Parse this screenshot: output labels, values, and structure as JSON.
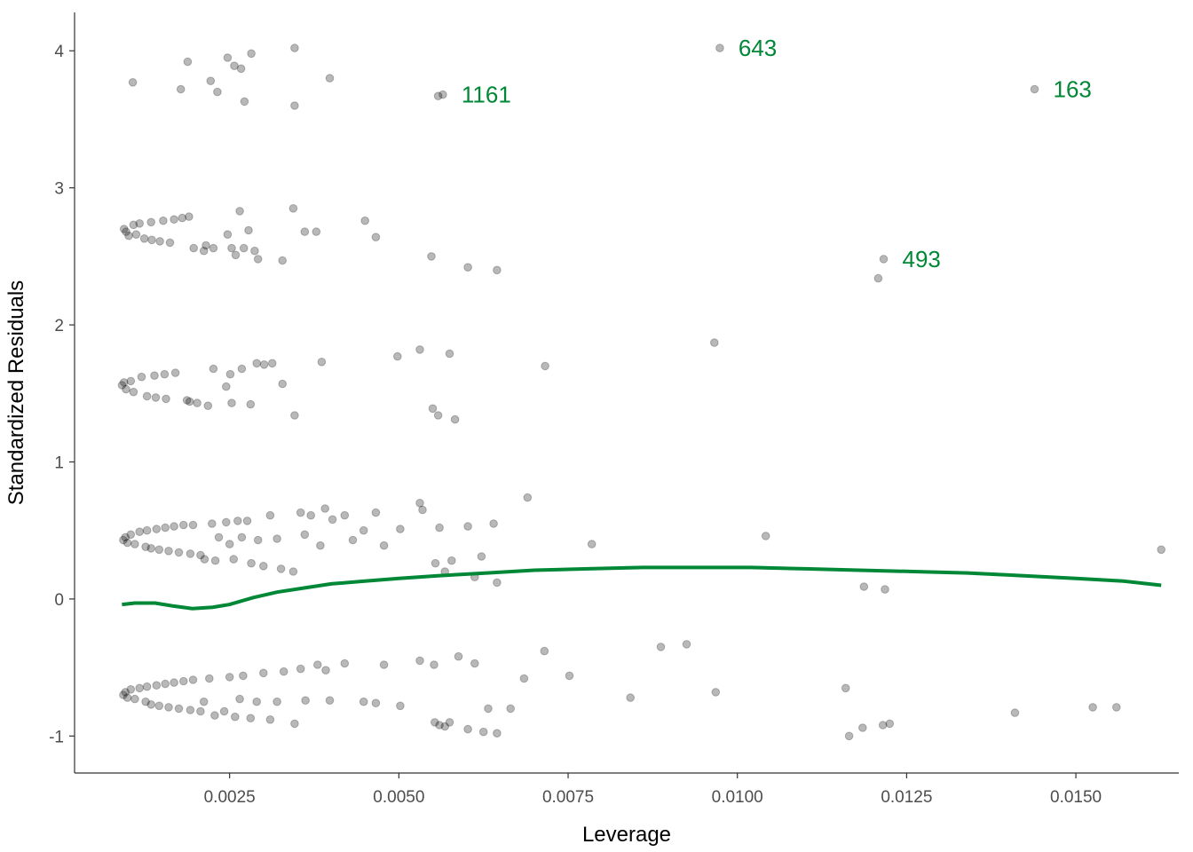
{
  "chart_data": {
    "type": "scatter",
    "title": "",
    "xlabel": "Leverage",
    "ylabel": "Standardized Residuals",
    "xlim": [
      0.00021,
      0.01652
    ],
    "ylim": [
      -1.27,
      4.28
    ],
    "x_ticks": [
      0.0025,
      0.005,
      0.0075,
      0.01,
      0.0125,
      0.015
    ],
    "x_tick_labels": [
      "0.0025",
      "0.0050",
      "0.0075",
      "0.0100",
      "0.0125",
      "0.0150"
    ],
    "y_ticks": [
      -1,
      0,
      1,
      2,
      3,
      4
    ],
    "y_tick_labels": [
      "-1",
      "0",
      "1",
      "2",
      "3",
      "4"
    ],
    "grid": false,
    "legend": "none",
    "point_color": "#000000",
    "point_opacity": 0.28,
    "smooth_color": "#008837",
    "annotation_color": "#008837",
    "series": [
      {
        "kind": "points",
        "points": [
          [
            0.00107,
            3.77
          ],
          [
            0.00178,
            3.72
          ],
          [
            0.00188,
            3.92
          ],
          [
            0.00222,
            3.78
          ],
          [
            0.00232,
            3.7
          ],
          [
            0.00247,
            3.95
          ],
          [
            0.00257,
            3.89
          ],
          [
            0.00267,
            3.87
          ],
          [
            0.00272,
            3.63
          ],
          [
            0.00282,
            3.98
          ],
          [
            0.00346,
            4.02
          ],
          [
            0.00346,
            3.6
          ],
          [
            0.00398,
            3.8
          ],
          [
            0.00558,
            3.67
          ],
          [
            0.00565,
            3.68
          ],
          [
            0.00974,
            4.02
          ],
          [
            0.01439,
            3.72
          ],
          [
            0.00094,
            2.7
          ],
          [
            0.00097,
            2.68
          ],
          [
            0.00101,
            2.65
          ],
          [
            0.00108,
            2.73
          ],
          [
            0.00112,
            2.66
          ],
          [
            0.00117,
            2.74
          ],
          [
            0.00124,
            2.63
          ],
          [
            0.00134,
            2.75
          ],
          [
            0.00135,
            2.62
          ],
          [
            0.00147,
            2.61
          ],
          [
            0.00152,
            2.76
          ],
          [
            0.00162,
            2.6
          ],
          [
            0.00168,
            2.77
          ],
          [
            0.0018,
            2.78
          ],
          [
            0.0019,
            2.79
          ],
          [
            0.00197,
            2.56
          ],
          [
            0.00212,
            2.54
          ],
          [
            0.00215,
            2.58
          ],
          [
            0.00226,
            2.56
          ],
          [
            0.00247,
            2.66
          ],
          [
            0.00253,
            2.56
          ],
          [
            0.00259,
            2.51
          ],
          [
            0.00265,
            2.83
          ],
          [
            0.00271,
            2.56
          ],
          [
            0.00278,
            2.69
          ],
          [
            0.00287,
            2.54
          ],
          [
            0.00292,
            2.48
          ],
          [
            0.00328,
            2.47
          ],
          [
            0.00344,
            2.85
          ],
          [
            0.00361,
            2.68
          ],
          [
            0.00378,
            2.68
          ],
          [
            0.0045,
            2.76
          ],
          [
            0.00466,
            2.64
          ],
          [
            0.00548,
            2.5
          ],
          [
            0.00602,
            2.42
          ],
          [
            0.00645,
            2.4
          ],
          [
            0.01208,
            2.34
          ],
          [
            0.01216,
            2.48
          ],
          [
            0.00091,
            1.56
          ],
          [
            0.00094,
            1.58
          ],
          [
            0.00097,
            1.53
          ],
          [
            0.00104,
            1.59
          ],
          [
            0.00108,
            1.51
          ],
          [
            0.0012,
            1.62
          ],
          [
            0.00128,
            1.48
          ],
          [
            0.00139,
            1.63
          ],
          [
            0.00141,
            1.47
          ],
          [
            0.00154,
            1.64
          ],
          [
            0.00156,
            1.46
          ],
          [
            0.0017,
            1.65
          ],
          [
            0.00187,
            1.45
          ],
          [
            0.00191,
            1.44
          ],
          [
            0.00202,
            1.43
          ],
          [
            0.00218,
            1.41
          ],
          [
            0.00226,
            1.68
          ],
          [
            0.00245,
            1.55
          ],
          [
            0.00251,
            1.64
          ],
          [
            0.00253,
            1.43
          ],
          [
            0.00268,
            1.68
          ],
          [
            0.00281,
            1.42
          ],
          [
            0.0029,
            1.72
          ],
          [
            0.00301,
            1.71
          ],
          [
            0.00313,
            1.72
          ],
          [
            0.00328,
            1.57
          ],
          [
            0.00346,
            1.34
          ],
          [
            0.00386,
            1.73
          ],
          [
            0.00498,
            1.77
          ],
          [
            0.00531,
            1.82
          ],
          [
            0.0055,
            1.39
          ],
          [
            0.00558,
            1.34
          ],
          [
            0.00575,
            1.79
          ],
          [
            0.00583,
            1.31
          ],
          [
            0.00716,
            1.7
          ],
          [
            0.00966,
            1.87
          ],
          [
            0.00093,
            0.43
          ],
          [
            0.00096,
            0.45
          ],
          [
            0.00099,
            0.41
          ],
          [
            0.00104,
            0.47
          ],
          [
            0.0011,
            0.4
          ],
          [
            0.00117,
            0.49
          ],
          [
            0.00126,
            0.38
          ],
          [
            0.00128,
            0.5
          ],
          [
            0.00134,
            0.37
          ],
          [
            0.00142,
            0.51
          ],
          [
            0.00146,
            0.36
          ],
          [
            0.00155,
            0.52
          ],
          [
            0.0016,
            0.35
          ],
          [
            0.00168,
            0.53
          ],
          [
            0.00175,
            0.34
          ],
          [
            0.00182,
            0.54
          ],
          [
            0.00192,
            0.33
          ],
          [
            0.00196,
            0.54
          ],
          [
            0.00207,
            0.32
          ],
          [
            0.00213,
            0.29
          ],
          [
            0.00224,
            0.55
          ],
          [
            0.00229,
            0.28
          ],
          [
            0.00234,
            0.45
          ],
          [
            0.00245,
            0.56
          ],
          [
            0.0025,
            0.4
          ],
          [
            0.00256,
            0.29
          ],
          [
            0.00262,
            0.57
          ],
          [
            0.00268,
            0.45
          ],
          [
            0.00276,
            0.57
          ],
          [
            0.00282,
            0.26
          ],
          [
            0.00292,
            0.43
          ],
          [
            0.003,
            0.24
          ],
          [
            0.0031,
            0.61
          ],
          [
            0.0032,
            0.44
          ],
          [
            0.00326,
            0.22
          ],
          [
            0.00344,
            0.2
          ],
          [
            0.00355,
            0.63
          ],
          [
            0.00361,
            0.47
          ],
          [
            0.0037,
            0.61
          ],
          [
            0.00384,
            0.39
          ],
          [
            0.00391,
            0.66
          ],
          [
            0.00402,
            0.58
          ],
          [
            0.0042,
            0.61
          ],
          [
            0.00432,
            0.43
          ],
          [
            0.00448,
            0.5
          ],
          [
            0.00466,
            0.63
          ],
          [
            0.00478,
            0.39
          ],
          [
            0.00502,
            0.51
          ],
          [
            0.00531,
            0.7
          ],
          [
            0.00535,
            0.65
          ],
          [
            0.0056,
            0.52
          ],
          [
            0.00554,
            0.26
          ],
          [
            0.00568,
            0.2
          ],
          [
            0.00578,
            0.28
          ],
          [
            0.00602,
            0.53
          ],
          [
            0.00612,
            0.16
          ],
          [
            0.00622,
            0.31
          ],
          [
            0.0064,
            0.55
          ],
          [
            0.00645,
            0.12
          ],
          [
            0.0069,
            0.74
          ],
          [
            0.00785,
            0.4
          ],
          [
            0.01042,
            0.46
          ],
          [
            0.01187,
            0.09
          ],
          [
            0.01218,
            0.07
          ],
          [
            0.01626,
            0.36
          ],
          [
            0.00093,
            -0.7
          ],
          [
            0.00096,
            -0.68
          ],
          [
            0.00099,
            -0.72
          ],
          [
            0.00104,
            -0.66
          ],
          [
            0.0011,
            -0.73
          ],
          [
            0.00117,
            -0.65
          ],
          [
            0.00126,
            -0.75
          ],
          [
            0.00128,
            -0.64
          ],
          [
            0.00134,
            -0.77
          ],
          [
            0.00142,
            -0.63
          ],
          [
            0.00146,
            -0.78
          ],
          [
            0.00155,
            -0.62
          ],
          [
            0.0016,
            -0.79
          ],
          [
            0.00168,
            -0.61
          ],
          [
            0.00175,
            -0.8
          ],
          [
            0.00182,
            -0.6
          ],
          [
            0.00192,
            -0.81
          ],
          [
            0.00196,
            -0.59
          ],
          [
            0.00207,
            -0.82
          ],
          [
            0.00212,
            -0.75
          ],
          [
            0.0022,
            -0.58
          ],
          [
            0.00228,
            -0.85
          ],
          [
            0.00242,
            -0.82
          ],
          [
            0.0025,
            -0.57
          ],
          [
            0.00258,
            -0.86
          ],
          [
            0.00265,
            -0.73
          ],
          [
            0.0027,
            -0.56
          ],
          [
            0.00281,
            -0.87
          ],
          [
            0.0029,
            -0.75
          ],
          [
            0.003,
            -0.54
          ],
          [
            0.0031,
            -0.88
          ],
          [
            0.0032,
            -0.75
          ],
          [
            0.0033,
            -0.53
          ],
          [
            0.00346,
            -0.91
          ],
          [
            0.00355,
            -0.51
          ],
          [
            0.00362,
            -0.74
          ],
          [
            0.0038,
            -0.48
          ],
          [
            0.00392,
            -0.52
          ],
          [
            0.00398,
            -0.74
          ],
          [
            0.0042,
            -0.47
          ],
          [
            0.00448,
            -0.75
          ],
          [
            0.00466,
            -0.76
          ],
          [
            0.00478,
            -0.48
          ],
          [
            0.00502,
            -0.78
          ],
          [
            0.00531,
            -0.45
          ],
          [
            0.00552,
            -0.48
          ],
          [
            0.00553,
            -0.9
          ],
          [
            0.0056,
            -0.92
          ],
          [
            0.00568,
            -0.93
          ],
          [
            0.00575,
            -0.9
          ],
          [
            0.00588,
            -0.42
          ],
          [
            0.00602,
            -0.95
          ],
          [
            0.00612,
            -0.47
          ],
          [
            0.00625,
            -0.97
          ],
          [
            0.00632,
            -0.8
          ],
          [
            0.00645,
            -0.98
          ],
          [
            0.00665,
            -0.8
          ],
          [
            0.00685,
            -0.58
          ],
          [
            0.00715,
            -0.38
          ],
          [
            0.00752,
            -0.56
          ],
          [
            0.00842,
            -0.72
          ],
          [
            0.00887,
            -0.35
          ],
          [
            0.00925,
            -0.33
          ],
          [
            0.00968,
            -0.68
          ],
          [
            0.0116,
            -0.65
          ],
          [
            0.01165,
            -1.0
          ],
          [
            0.01185,
            -0.94
          ],
          [
            0.01215,
            -0.92
          ],
          [
            0.01225,
            -0.91
          ],
          [
            0.0141,
            -0.83
          ],
          [
            0.01525,
            -0.79
          ],
          [
            0.0156,
            -0.79
          ]
        ]
      },
      {
        "kind": "smooth",
        "points": [
          [
            0.00091,
            -0.04
          ],
          [
            0.0011,
            -0.03
          ],
          [
            0.0014,
            -0.03
          ],
          [
            0.00165,
            -0.05
          ],
          [
            0.00195,
            -0.07
          ],
          [
            0.00225,
            -0.06
          ],
          [
            0.0025,
            -0.04
          ],
          [
            0.00285,
            0.01
          ],
          [
            0.0032,
            0.05
          ],
          [
            0.0036,
            0.08
          ],
          [
            0.004,
            0.11
          ],
          [
            0.0045,
            0.13
          ],
          [
            0.005,
            0.15
          ],
          [
            0.0056,
            0.17
          ],
          [
            0.0063,
            0.19
          ],
          [
            0.007,
            0.21
          ],
          [
            0.0078,
            0.22
          ],
          [
            0.0086,
            0.23
          ],
          [
            0.0094,
            0.23
          ],
          [
            0.0102,
            0.23
          ],
          [
            0.011,
            0.22
          ],
          [
            0.0118,
            0.21
          ],
          [
            0.0126,
            0.2
          ],
          [
            0.0134,
            0.19
          ],
          [
            0.0142,
            0.17
          ],
          [
            0.015,
            0.15
          ],
          [
            0.0157,
            0.13
          ],
          [
            0.01626,
            0.1
          ]
        ]
      }
    ],
    "annotations": [
      {
        "text": "643",
        "x": 0.00974,
        "y": 4.02
      },
      {
        "text": "1161",
        "x": 0.00565,
        "y": 3.68
      },
      {
        "text": "163",
        "x": 0.01439,
        "y": 3.72
      },
      {
        "text": "493",
        "x": 0.01216,
        "y": 2.48
      }
    ]
  }
}
